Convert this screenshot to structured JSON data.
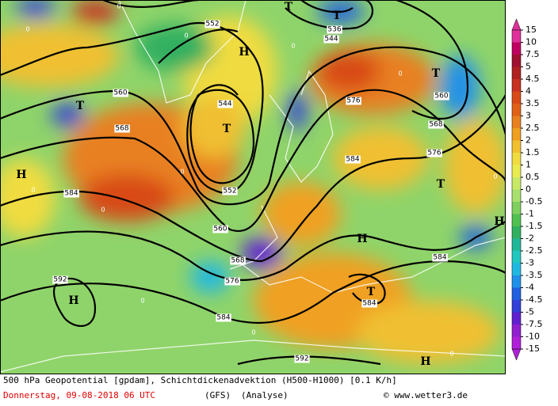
{
  "map": {
    "colorbar": {
      "labels": [
        15,
        10,
        7.5,
        5,
        4.5,
        4,
        3.5,
        3,
        2.5,
        2,
        1.5,
        1,
        0.5,
        0,
        -0.5,
        -1,
        -1.5,
        -2,
        -2.5,
        -3,
        -3.5,
        -4,
        -4.5,
        -5,
        -7.5,
        -10,
        -15
      ],
      "colors": [
        "#e0309a",
        "#c00060",
        "#a01030",
        "#b02020",
        "#c83020",
        "#d84a18",
        "#e06018",
        "#e88020",
        "#f0a020",
        "#f0c030",
        "#f0dc40",
        "#e8ec50",
        "#c8e868",
        "#a8e070",
        "#80d060",
        "#50c050",
        "#30b060",
        "#20b898",
        "#20c8c0",
        "#20b8e0",
        "#2090e8",
        "#2060e0",
        "#3040d8",
        "#6020d0",
        "#9020d0",
        "#b020d8"
      ]
    },
    "contour_labels": [
      "552",
      "536",
      "544",
      "560",
      "544",
      "576",
      "560",
      "568",
      "568",
      "576",
      "584",
      "584",
      "552",
      "560",
      "568",
      "576",
      "584",
      "584",
      "592",
      "584",
      "592"
    ],
    "centers": [
      "T",
      "T",
      "H",
      "T",
      "T",
      "T",
      "H",
      "T",
      "H",
      "H",
      "T",
      "H",
      "H"
    ],
    "zero_labels": [
      "0",
      "0",
      "0",
      "0",
      "0",
      "0",
      "0",
      "0",
      "0",
      "0",
      "0",
      "0"
    ]
  },
  "footer": {
    "description": "500 hPa Geopotential [gpdam], Schichtdickenadvektion (H500-H1000) [0.1 K/h]",
    "date": "Donnerstag, 09-08-2018  06 UTC",
    "model": "(GFS)",
    "run": "(Analyse)",
    "credit": "© www.wetter3.de"
  }
}
